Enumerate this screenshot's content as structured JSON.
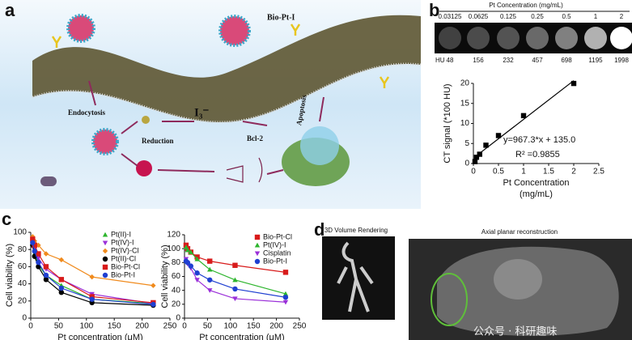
{
  "panel_labels": [
    "a",
    "b",
    "c",
    "d"
  ],
  "illustration": {
    "title": "Bio-Pt-I",
    "endocytosis": "Endocytosis",
    "reduction": "Reduction",
    "ion": "I₃⁻",
    "target": "Bcl-2",
    "apoptosis": "Apoptosis"
  },
  "phantom": {
    "title": "Pt Concentration (mg/mL)",
    "concentrations": [
      "0.03125",
      "0.0625",
      "0.125",
      "0.25",
      "0.5",
      "1",
      "2"
    ],
    "hu_label": "HU",
    "hu": [
      48,
      156,
      232,
      457,
      698,
      1195,
      1998
    ]
  },
  "imaging": {
    "left_title": "3D Volume Rendering",
    "right_title": "Axial planar reconstruction",
    "watermark": "公众号 · 科研趣味"
  },
  "chart_data": [
    {
      "type": "scatter",
      "x": [
        0.03125,
        0.0625,
        0.125,
        0.25,
        0.5,
        1,
        2
      ],
      "values": [
        0.48,
        1.56,
        2.32,
        4.57,
        6.98,
        11.95,
        19.98
      ],
      "color": "#000000",
      "trendline": true,
      "xlim": [
        0,
        2.5
      ],
      "xticks": [
        0,
        0.5,
        1,
        1.5,
        2,
        2.5
      ],
      "ylim": [
        0,
        20
      ],
      "yticks": [
        0,
        5,
        10,
        15,
        20
      ],
      "ylabel": "CT signal (*100 HU)",
      "xlabel": [
        "Pt Concentration",
        "(mg/mL)"
      ],
      "annotations": [
        "y=967.3*x + 135.0",
        "R² =0.9855"
      ]
    },
    {
      "type": "line",
      "x": [
        3.4,
        6.9,
        13.7,
        27.5,
        55,
        110,
        220
      ],
      "series": [
        {
          "name": "Pt(II)-I",
          "color": "#2db52d",
          "marker": "triangle",
          "values": [
            88,
            75,
            62,
            50,
            38,
            22,
            17
          ]
        },
        {
          "name": "Pt(IV)-I",
          "color": "#9b30d9",
          "marker": "triangle-down",
          "values": [
            90,
            80,
            70,
            57,
            45,
            28,
            17
          ]
        },
        {
          "name": "Pt(IV)-Cl",
          "color": "#f08a1c",
          "marker": "diamond",
          "values": [
            95,
            90,
            85,
            75,
            68,
            48,
            38
          ]
        },
        {
          "name": "Pt(II)-Cl",
          "color": "#000000",
          "marker": "circle",
          "values": [
            85,
            72,
            60,
            45,
            30,
            18,
            15
          ]
        },
        {
          "name": "Bio-Pt-Cl",
          "color": "#d81b1b",
          "marker": "square",
          "values": [
            92,
            85,
            75,
            60,
            45,
            25,
            18
          ]
        },
        {
          "name": "Bio-Pt-I",
          "color": "#1f3fd1",
          "marker": "circle",
          "values": [
            88,
            78,
            65,
            50,
            35,
            22,
            16
          ]
        }
      ],
      "xlim": [
        0,
        250
      ],
      "xticks": [
        0,
        50,
        100,
        150,
        200,
        250
      ],
      "ylim": [
        0,
        100
      ],
      "yticks": [
        0,
        20,
        40,
        60,
        80,
        100
      ],
      "ylabel": "Cell viability (%)",
      "xlabel": [
        "Pt concentration (μM)"
      ]
    },
    {
      "type": "line",
      "x": [
        3.4,
        6.9,
        13.7,
        27.5,
        55,
        110,
        220
      ],
      "series": [
        {
          "name": "Bio-Pt-Cl",
          "color": "#d81b1b",
          "marker": "square",
          "values": [
            105,
            100,
            95,
            88,
            82,
            76,
            66
          ]
        },
        {
          "name": "Pt(IV)-I",
          "color": "#2db52d",
          "marker": "triangle",
          "values": [
            102,
            98,
            95,
            85,
            70,
            55,
            35
          ]
        },
        {
          "name": "Cisplatin",
          "color": "#9b30d9",
          "marker": "triangle-down",
          "values": [
            85,
            78,
            72,
            55,
            40,
            28,
            23
          ]
        },
        {
          "name": "Bio-Pt-I",
          "color": "#1f3fd1",
          "marker": "circle",
          "values": [
            82,
            80,
            75,
            65,
            55,
            42,
            30
          ]
        }
      ],
      "xlim": [
        0,
        250
      ],
      "xticks": [
        0,
        50,
        100,
        150,
        200,
        250
      ],
      "ylim": [
        0,
        120
      ],
      "yticks": [
        0,
        20,
        40,
        60,
        80,
        100,
        120
      ],
      "ylabel": "Cell viability (%)",
      "xlabel": [
        "Pt concentration (μM)"
      ]
    }
  ]
}
